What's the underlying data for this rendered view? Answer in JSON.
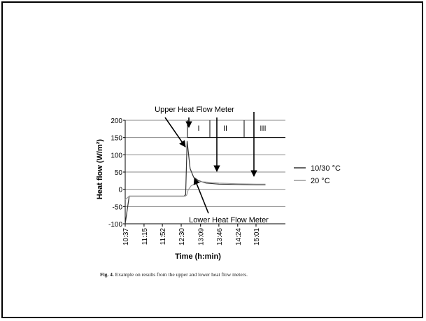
{
  "figure": {
    "caption_label": "Fig. 4.",
    "caption_text": "Example on results from the upper and lower heat flow meters."
  },
  "chart_data": {
    "type": "line",
    "title": "",
    "xlabel": "Time (h:min)",
    "ylabel": "Heat flow (W/m²)",
    "ylim": [
      -100,
      200
    ],
    "yticks": [
      -100,
      -50,
      0,
      50,
      100,
      150,
      200
    ],
    "xticks": [
      "10:37",
      "11:15",
      "11:52",
      "12:30",
      "13:09",
      "13:46",
      "14:24",
      "15:01"
    ],
    "grid": "horizontal",
    "legend_position": "right",
    "legend": [
      {
        "label": "10/30 °C",
        "color": "#333333"
      },
      {
        "label": "20 °C",
        "color": "#999999"
      }
    ],
    "phases": [
      "I",
      "II",
      "III"
    ],
    "annotations": {
      "upper": "Upper Heat Flow Meter",
      "lower": "Lower Heat Flow Meter"
    },
    "series": [
      {
        "name": "10/30 °C",
        "color": "#333333",
        "t": [
          "10:37",
          "10:45",
          "11:15",
          "11:52",
          "12:30",
          "12:36",
          "12:39",
          "12:42",
          "12:48",
          "12:55",
          "13:05",
          "13:20",
          "13:46",
          "14:24",
          "15:01",
          "15:20"
        ],
        "y": [
          -100,
          -20,
          -20,
          -20,
          -20,
          -20,
          -15,
          140,
          60,
          35,
          25,
          18,
          15,
          14,
          13,
          13
        ]
      },
      {
        "name": "20 °C",
        "color": "#999999",
        "t": [
          "10:37",
          "10:45",
          "11:15",
          "11:52",
          "12:30",
          "12:38",
          "12:41",
          "12:44",
          "12:50",
          "13:00",
          "13:10",
          "13:30",
          "13:46",
          "14:24",
          "15:01",
          "15:20"
        ],
        "y": [
          -30,
          -20,
          -20,
          -20,
          -20,
          -20,
          -17,
          -2,
          10,
          18,
          22,
          20,
          18,
          16,
          15,
          15
        ]
      }
    ]
  }
}
